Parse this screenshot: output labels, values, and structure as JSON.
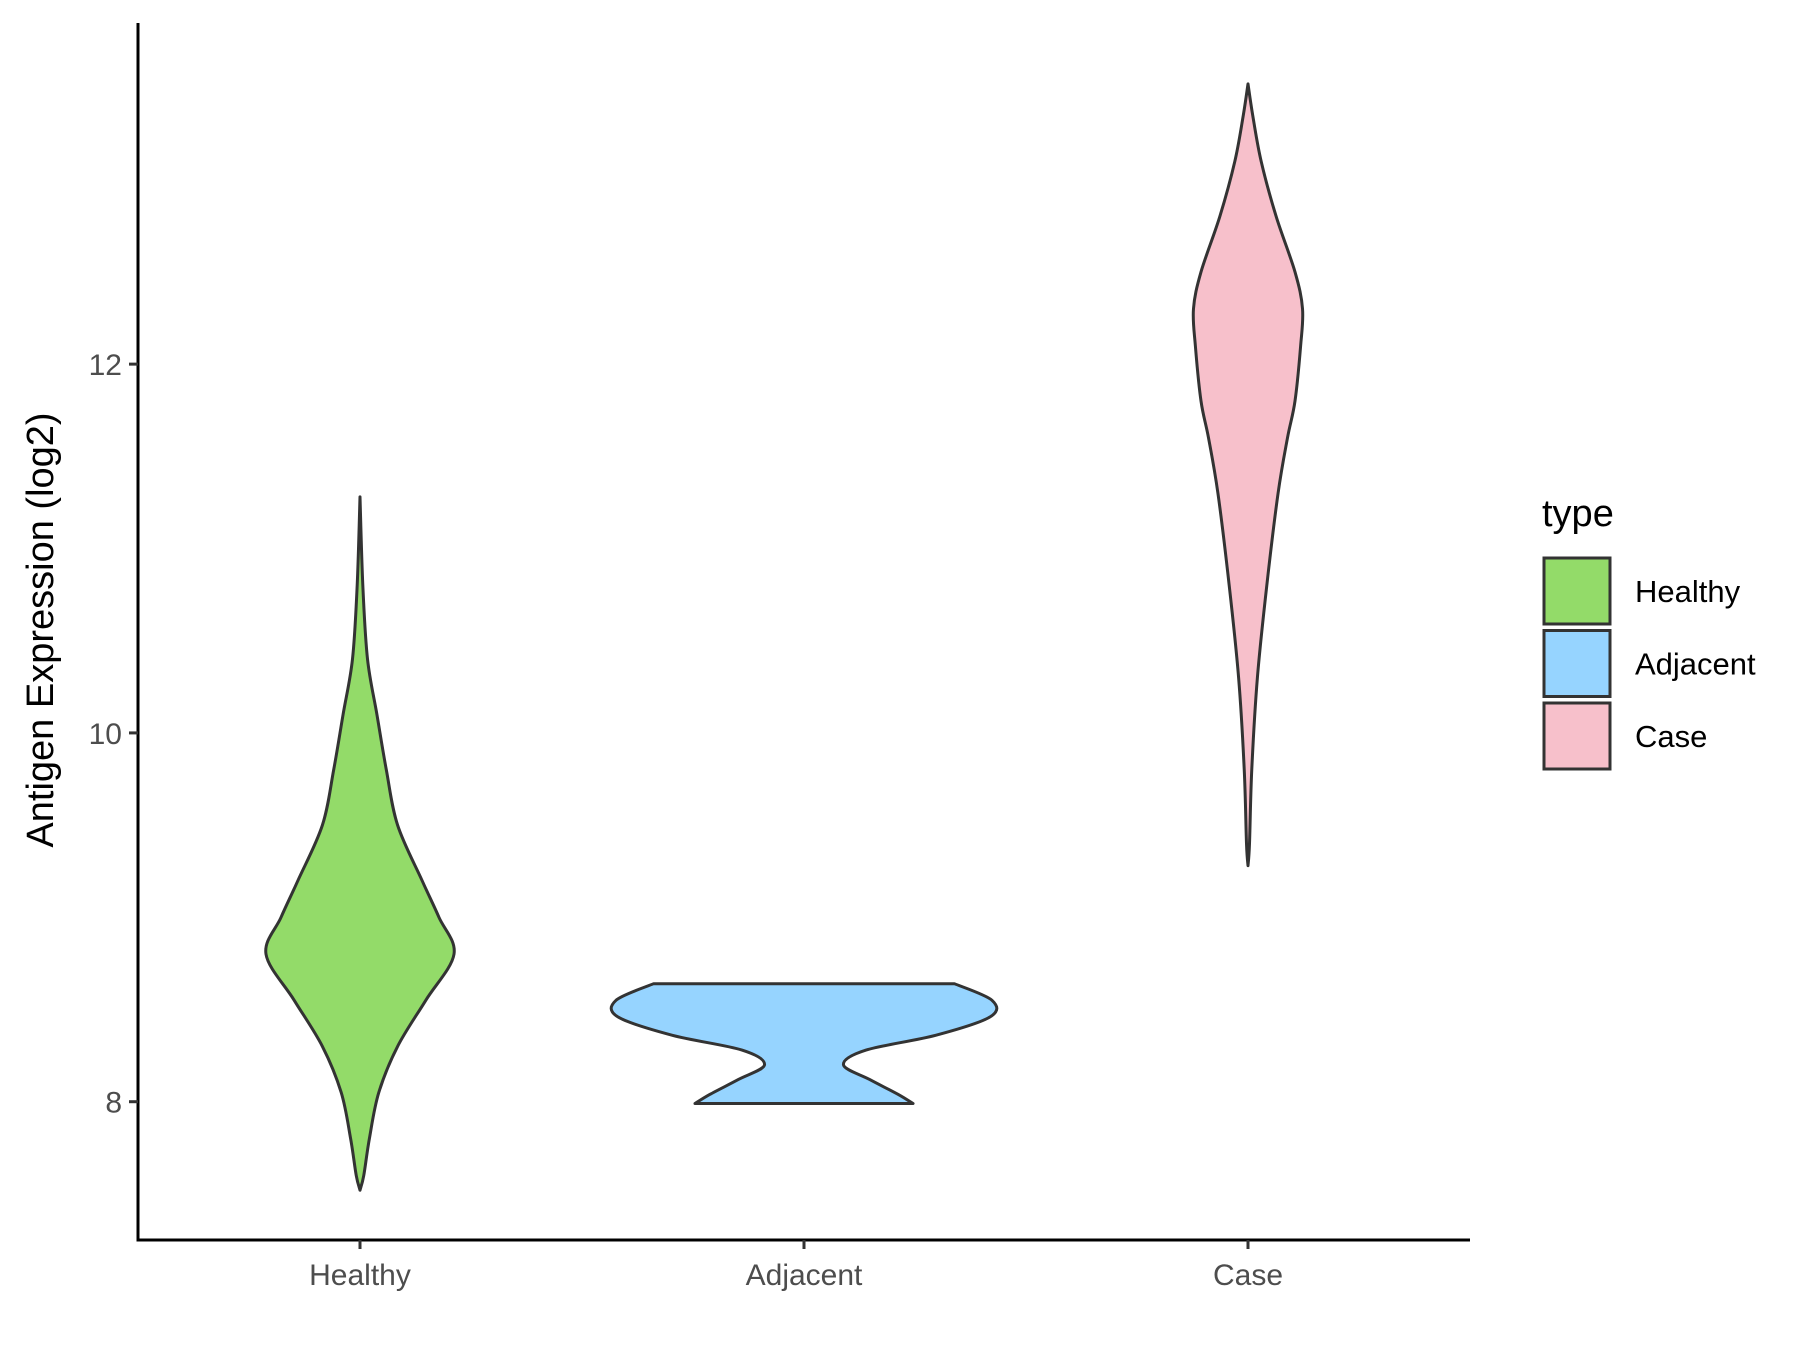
{
  "chart_data": {
    "type": "violin",
    "ylabel": "Antigen Expression (log2)",
    "xlabel": "",
    "ylim": [
      7.25,
      13.85
    ],
    "y_ticks": [
      8,
      10,
      12
    ],
    "categories": [
      "Healthy",
      "Adjacent",
      "Case"
    ],
    "legend": {
      "title": "type",
      "position": "right",
      "entries": [
        "Healthy",
        "Adjacent",
        "Case"
      ]
    },
    "series": [
      {
        "category": "Healthy",
        "color": "#93DB69",
        "range": [
          7.52,
          11.28
        ],
        "density_profile": [
          [
            7.52,
            0.0
          ],
          [
            7.6,
            0.02
          ],
          [
            7.8,
            0.05
          ],
          [
            8.05,
            0.1
          ],
          [
            8.3,
            0.2
          ],
          [
            8.55,
            0.35
          ],
          [
            8.8,
            0.5
          ],
          [
            9.0,
            0.42
          ],
          [
            9.2,
            0.33
          ],
          [
            9.5,
            0.2
          ],
          [
            9.8,
            0.14
          ],
          [
            10.1,
            0.09
          ],
          [
            10.4,
            0.04
          ],
          [
            10.8,
            0.015
          ],
          [
            11.28,
            0.0
          ]
        ]
      },
      {
        "category": "Adjacent",
        "color": "#96D4FF",
        "range": [
          7.99,
          8.64
        ],
        "density_profile": [
          [
            7.99,
            0.58
          ],
          [
            8.04,
            0.5
          ],
          [
            8.12,
            0.35
          ],
          [
            8.2,
            0.21
          ],
          [
            8.28,
            0.33
          ],
          [
            8.36,
            0.7
          ],
          [
            8.46,
            0.99
          ],
          [
            8.55,
            1.0
          ],
          [
            8.64,
            0.8
          ]
        ]
      },
      {
        "category": "Case",
        "color": "#F7C0CB",
        "range": [
          9.28,
          13.52
        ],
        "density_profile": [
          [
            9.28,
            0.0
          ],
          [
            9.4,
            0.008
          ],
          [
            9.8,
            0.02
          ],
          [
            10.3,
            0.05
          ],
          [
            10.8,
            0.1
          ],
          [
            11.3,
            0.16
          ],
          [
            11.6,
            0.21
          ],
          [
            11.8,
            0.25
          ],
          [
            12.1,
            0.28
          ],
          [
            12.3,
            0.29
          ],
          [
            12.5,
            0.25
          ],
          [
            12.8,
            0.15
          ],
          [
            13.1,
            0.07
          ],
          [
            13.35,
            0.025
          ],
          [
            13.52,
            0.0
          ]
        ]
      }
    ]
  }
}
